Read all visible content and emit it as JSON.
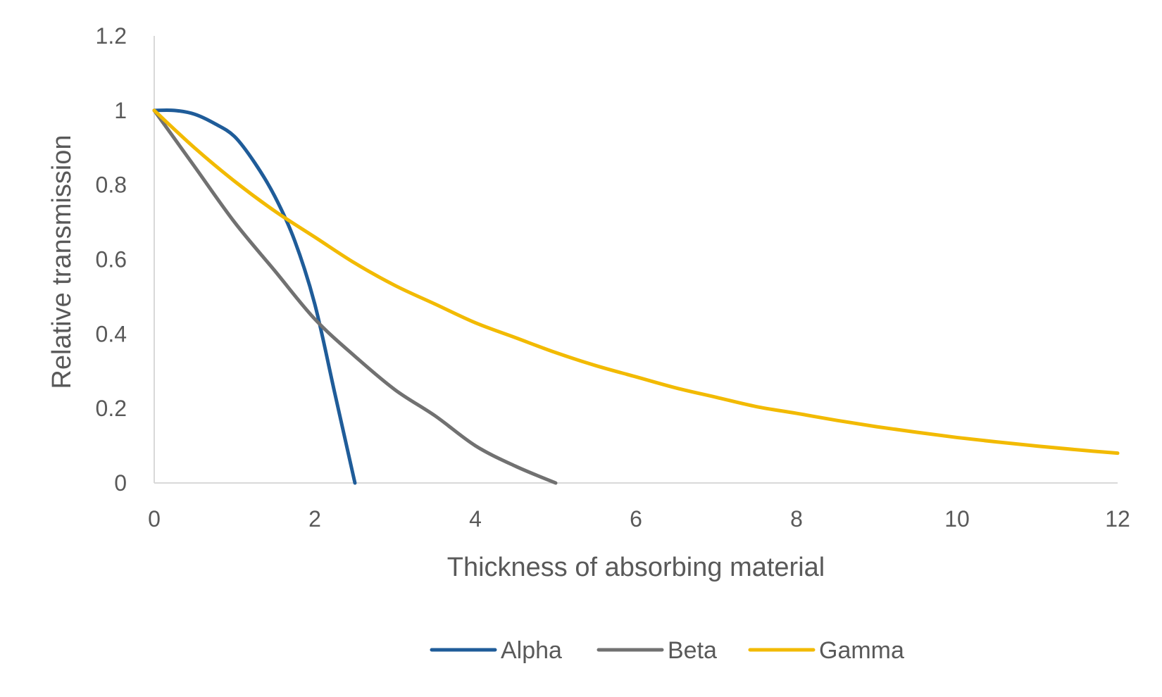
{
  "chart_data": {
    "type": "line",
    "title": "",
    "xlabel": "Thickness of absorbing material",
    "ylabel": "Relative transmission",
    "xlim": [
      0,
      12
    ],
    "ylim": [
      0,
      1.2
    ],
    "xticks": [
      "0",
      "2",
      "4",
      "6",
      "8",
      "10",
      "12"
    ],
    "yticks": [
      "0",
      "0.2",
      "0.4",
      "0.6",
      "0.8",
      "1",
      "1.2"
    ],
    "grid": false,
    "legend_position": "bottom",
    "series": [
      {
        "name": "Alpha",
        "color": "#1F5C99",
        "x": [
          0,
          0.25,
          0.5,
          0.75,
          1,
          1.25,
          1.5,
          1.75,
          2,
          2.25,
          2.5
        ],
        "y": [
          1,
          1,
          0.99,
          0.965,
          0.93,
          0.86,
          0.77,
          0.65,
          0.48,
          0.24,
          0
        ]
      },
      {
        "name": "Beta",
        "color": "#717171",
        "x": [
          0,
          0.5,
          1,
          1.5,
          2,
          2.5,
          3,
          3.5,
          4,
          4.5,
          5
        ],
        "y": [
          1,
          0.85,
          0.7,
          0.57,
          0.44,
          0.34,
          0.25,
          0.18,
          0.1,
          0.045,
          0
        ]
      },
      {
        "name": "Gamma",
        "color": "#F2BA00",
        "x": [
          0,
          0.5,
          1,
          1.5,
          2,
          2.5,
          3,
          3.5,
          4,
          4.5,
          5,
          5.5,
          6,
          6.5,
          7,
          7.5,
          8,
          8.5,
          9,
          9.5,
          10,
          10.5,
          11,
          11.5,
          12
        ],
        "y": [
          1,
          0.9,
          0.81,
          0.73,
          0.66,
          0.59,
          0.53,
          0.48,
          0.43,
          0.39,
          0.35,
          0.315,
          0.285,
          0.255,
          0.23,
          0.205,
          0.187,
          0.168,
          0.151,
          0.136,
          0.122,
          0.11,
          0.099,
          0.089,
          0.08
        ]
      }
    ]
  }
}
